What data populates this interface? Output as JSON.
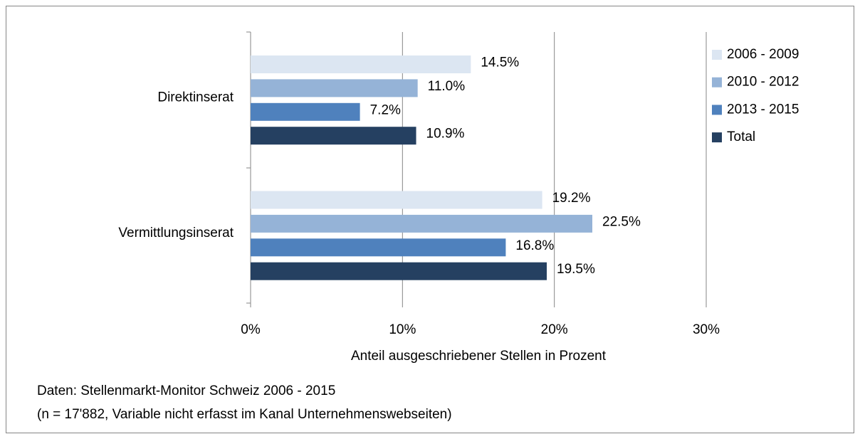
{
  "chart_data": {
    "type": "hbar",
    "categories": [
      "Direktinserat",
      "Vermittlungsinserat"
    ],
    "series": [
      {
        "name": "2006 - 2009",
        "color": "#dce6f2",
        "values": [
          14.5,
          19.2
        ],
        "value_labels": [
          "14.5%",
          "19.2%"
        ]
      },
      {
        "name": "2010 - 2012",
        "color": "#95b3d7",
        "values": [
          11.0,
          22.5
        ],
        "value_labels": [
          "11.0%",
          "22.5%"
        ]
      },
      {
        "name": "2013 - 2015",
        "color": "#4f81bd",
        "values": [
          7.2,
          16.8
        ],
        "value_labels": [
          "7.2%",
          "16.8%"
        ]
      },
      {
        "name": "Total",
        "color": "#254061",
        "values": [
          10.9,
          19.5
        ],
        "value_labels": [
          "10.9%",
          "19.5%"
        ]
      }
    ],
    "xlim": [
      0,
      30
    ],
    "xticks": [
      {
        "value": 0,
        "label": "0%"
      },
      {
        "value": 10,
        "label": "10%"
      },
      {
        "value": 20,
        "label": "20%"
      },
      {
        "value": 30,
        "label": "30%"
      }
    ],
    "x_label": "Anteil ausgeschriebener Stellen in Prozent",
    "grid": true,
    "legend": "right",
    "footnotes": [
      "Daten: Stellenmarkt-Monitor Schweiz 2006 - 2015",
      "(n = 17'882, Variable nicht erfasst im Kanal Unternehmenswebseiten)"
    ]
  }
}
